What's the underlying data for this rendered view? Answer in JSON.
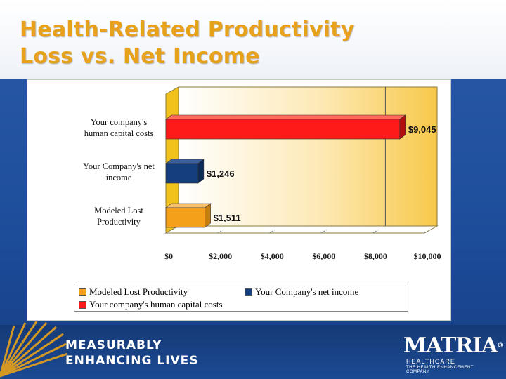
{
  "slide": {
    "title_line1": "Health-Related Productivity",
    "title_line2": "Loss vs. Net Income"
  },
  "colors": {
    "title": "#e8a11a",
    "background": "#1e4f9c",
    "series_human_capital": "#ff1a1a",
    "series_net_income": "#153e7e",
    "series_lost_productivity": "#f5a01a",
    "plot_fill_right": "#f7c84a"
  },
  "chart_data": {
    "type": "bar",
    "orientation": "horizontal",
    "style": "3d",
    "categories": [
      "Your company's human capital costs",
      "Your Company's net income",
      "Modeled Lost Productivity"
    ],
    "category_label_lines": [
      [
        "Your company's",
        "human capital costs"
      ],
      [
        "Your Company's net",
        "income"
      ],
      [
        "Modeled Lost",
        "Productivity"
      ]
    ],
    "values": [
      9045,
      1246,
      1511
    ],
    "data_labels": [
      "$9,045",
      "$1,246",
      "$1,511"
    ],
    "xlim": [
      0,
      10000
    ],
    "x_ticks": [
      0,
      2000,
      4000,
      6000,
      8000,
      10000
    ],
    "x_tick_labels": [
      "$0",
      "$2,000",
      "$4,000",
      "$6,000",
      "$8,000",
      "$10,000"
    ],
    "gridlines": [
      8000
    ],
    "legend": {
      "placement": "bottom",
      "entries": [
        "Modeled Lost Productivity",
        "Your Company's net income",
        "Your company's human capital costs"
      ]
    }
  },
  "footer": {
    "tagline_line1": "MEASURABLY",
    "tagline_line2": "ENHANCING LIVES",
    "logo_word": "MATRIA",
    "logo_registered": "®",
    "logo_sub": "HEALTHCARE",
    "logo_sub2": "THE HEALTH ENHANCEMENT COMPANY"
  }
}
